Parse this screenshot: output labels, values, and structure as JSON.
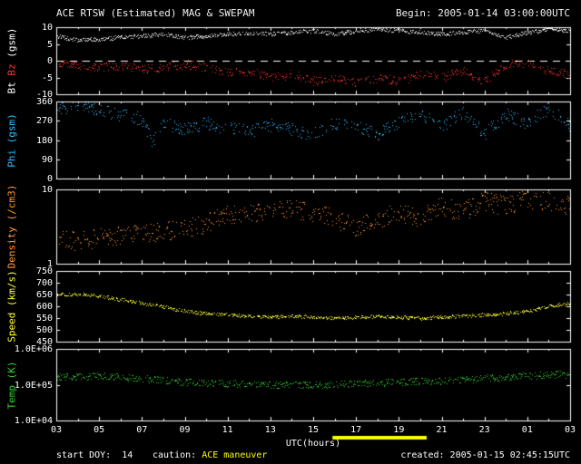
{
  "header": {
    "title": "ACE RTSW (Estimated) MAG & SWEPAM",
    "begin": "Begin: 2005-01-14 03:00:00UTC"
  },
  "chart_data": {
    "type": "scatter",
    "title": "ACE RTSW (Estimated) MAG & SWEPAM",
    "begin_label": "Begin: 2005-01-14 03:00:00UTC",
    "xlabel": "UTC(hours)",
    "x_range_hours": [
      3,
      27
    ],
    "x_tick_hours": [
      3,
      5,
      7,
      9,
      11,
      13,
      15,
      17,
      19,
      21,
      23,
      25,
      27
    ],
    "x_tick_labels": [
      "03",
      "05",
      "07",
      "09",
      "11",
      "13",
      "15",
      "17",
      "19",
      "21",
      "23",
      "01",
      "03"
    ],
    "caution_bar": {
      "color": "#ffff00",
      "x_hours": [
        15.9,
        20.3
      ]
    },
    "panels": [
      {
        "name": "bt-bz",
        "label_parts": [
          {
            "text": "Bt ",
            "color": "#ffffff"
          },
          {
            "text": "Bz ",
            "color": "#ff3333"
          },
          {
            "text": "(gsm)",
            "color": "#ffffff"
          }
        ],
        "ylim": [
          -10,
          10
        ],
        "log": false,
        "zero_line": true,
        "yticks": [
          10,
          5,
          0,
          -5,
          -10
        ],
        "ytick_labels": [
          "10",
          "5",
          "0",
          "-5",
          "-10"
        ],
        "series": [
          {
            "name": "Bt",
            "color": "#f2f2f2",
            "noise": 0.6,
            "noise_mode": "linear",
            "gap": 0.05,
            "x": [
              3,
              4,
              5,
              6,
              7,
              8,
              9,
              10,
              11,
              12,
              13,
              14,
              15,
              16,
              17,
              18,
              19,
              20,
              21,
              22,
              23,
              24,
              25,
              26,
              27
            ],
            "y": [
              7.5,
              6.2,
              6.5,
              7,
              7.5,
              8,
              7,
              7.5,
              8,
              8.5,
              8,
              8.5,
              9,
              8,
              9,
              9.5,
              9,
              8.5,
              8,
              8.5,
              9,
              7,
              8.5,
              9.5,
              9
            ]
          },
          {
            "name": "Bz",
            "color": "#ff3333",
            "noise": 1.3,
            "noise_mode": "linear",
            "gap": 0.3,
            "x": [
              3,
              4,
              5,
              6,
              7,
              8,
              9,
              10,
              11,
              12,
              13,
              14,
              15,
              16,
              17,
              18,
              19,
              20,
              21,
              22,
              23,
              24,
              25,
              26,
              27
            ],
            "y": [
              -0.5,
              -1,
              -2,
              -1.5,
              -2.5,
              -2,
              -1,
              -2,
              -3.5,
              -3,
              -5,
              -4,
              -6,
              -5,
              -6.5,
              -5,
              -6,
              -4,
              -5,
              -3,
              -6,
              -1,
              -0.5,
              -3,
              -4
            ]
          }
        ]
      },
      {
        "name": "phi",
        "label_parts": [
          {
            "text": "Phi (gsm)",
            "color": "#33bbff"
          }
        ],
        "ylim": [
          0,
          360
        ],
        "log": false,
        "zero_line": false,
        "yticks": [
          360,
          270,
          180,
          90,
          0
        ],
        "ytick_labels": [
          "360",
          "270",
          "180",
          "90",
          "0"
        ],
        "series": [
          {
            "name": "Phi",
            "color": "#33bbff",
            "noise": 30,
            "noise_mode": "linear",
            "gap": 0.35,
            "x": [
              3,
              4,
              5,
              6,
              7,
              7.5,
              8,
              9,
              10,
              11,
              12,
              13,
              14,
              15,
              16,
              17,
              18,
              19,
              20,
              21,
              22,
              23,
              24,
              25,
              26,
              27
            ],
            "y": [
              330,
              340,
              320,
              300,
              280,
              170,
              260,
              230,
              260,
              240,
              220,
              250,
              230,
              210,
              260,
              240,
              210,
              260,
              300,
              250,
              310,
              210,
              300,
              260,
              330,
              250
            ]
          }
        ]
      },
      {
        "name": "density",
        "label_parts": [
          {
            "text": "Density (/cm3)",
            "color": "#ff9933"
          }
        ],
        "ylim": [
          1,
          10
        ],
        "log": true,
        "zero_line": false,
        "yticks": [
          10,
          1
        ],
        "ytick_labels": [
          "10",
          "1"
        ],
        "series": [
          {
            "name": "Density",
            "color": "#ff9933",
            "noise": 0.13,
            "noise_mode": "log",
            "gap": 0.25,
            "x": [
              3,
              4,
              5,
              6,
              7,
              8,
              9,
              10,
              11,
              12,
              13,
              14,
              15,
              16,
              17,
              18,
              19,
              20,
              21,
              22,
              23,
              24,
              25,
              26,
              27
            ],
            "y": [
              2.2,
              2.0,
              2.2,
              2.4,
              2.5,
              2.8,
              3.0,
              3.5,
              4.5,
              5.0,
              5.0,
              5.5,
              5.0,
              4.0,
              3.0,
              4.0,
              5.0,
              4.0,
              6.0,
              5.0,
              7.0,
              6.0,
              7.5,
              7.0,
              6.0
            ]
          }
        ]
      },
      {
        "name": "speed",
        "label_parts": [
          {
            "text": "Speed (km/s)",
            "color": "#ffff33"
          }
        ],
        "ylim": [
          450,
          750
        ],
        "log": false,
        "zero_line": false,
        "yticks": [
          750,
          700,
          650,
          600,
          550,
          500,
          450
        ],
        "ytick_labels": [
          "750",
          "700",
          "650",
          "600",
          "550",
          "500",
          "450"
        ],
        "series": [
          {
            "name": "Speed",
            "color": "#ffff33",
            "noise": 7,
            "noise_mode": "linear",
            "gap": 0.1,
            "x": [
              3,
              4,
              5,
              6,
              7,
              8,
              9,
              10,
              11,
              12,
              13,
              14,
              15,
              16,
              17,
              18,
              19,
              20,
              21,
              22,
              23,
              24,
              25,
              26,
              27
            ],
            "y": [
              650,
              652,
              645,
              630,
              615,
              600,
              580,
              570,
              565,
              560,
              556,
              560,
              555,
              550,
              555,
              558,
              555,
              550,
              555,
              560,
              565,
              570,
              580,
              600,
              615
            ]
          }
        ]
      },
      {
        "name": "temp",
        "label_parts": [
          {
            "text": "Temp (K)",
            "color": "#33cc33"
          }
        ],
        "ylim": [
          10000,
          1000000
        ],
        "log": true,
        "zero_line": false,
        "yticks": [
          1000000,
          100000,
          10000
        ],
        "ytick_labels": [
          "1.0E+06",
          "1.0E+05",
          "1.0E+04"
        ],
        "series": [
          {
            "name": "Temp",
            "color": "#33cc33",
            "noise": 0.1,
            "noise_mode": "log",
            "gap": 0.15,
            "x": [
              3,
              5,
              7,
              9,
              11,
              13,
              15,
              17,
              19,
              21,
              23,
              25,
              27
            ],
            "y": [
              160000,
              180000,
              150000,
              120000,
              110000,
              100000,
              100000,
              110000,
              120000,
              130000,
              150000,
              180000,
              200000
            ]
          }
        ]
      }
    ]
  },
  "footer": {
    "start_doy": "start DOY:  14",
    "caution_label": "caution:",
    "caution_value": "ACE maneuver",
    "xlabel": "UTC(hours)",
    "created": "created: 2005-01-15 02:45:15UTC"
  }
}
